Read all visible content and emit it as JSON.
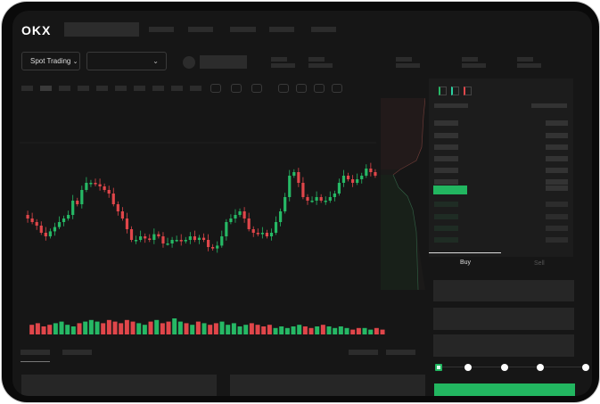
{
  "header": {
    "logo": "OKX",
    "spot_label": "Spot Trading",
    "chevron": "chevron-down-icon"
  },
  "trade": {
    "buy_tab": "Buy",
    "sell_tab": "Sell",
    "leverage_steps": 5,
    "selected_step": 0
  },
  "colors": {
    "up": "#26b865",
    "down": "#e0464a",
    "accent": "#22b660"
  },
  "chart": {
    "closes": [
      95,
      90,
      85,
      80,
      70,
      65,
      72,
      78,
      85,
      90,
      95,
      115,
      110,
      130,
      140,
      140,
      138,
      135,
      130,
      125,
      110,
      100,
      90,
      75,
      60,
      60,
      65,
      62,
      60,
      68,
      65,
      55,
      55,
      60,
      60,
      58,
      60,
      65,
      60,
      63,
      60,
      50,
      48,
      52,
      65,
      85,
      90,
      95,
      100,
      90,
      75,
      70,
      68,
      70,
      65,
      70,
      85,
      100,
      120,
      150,
      155,
      140,
      120,
      115,
      115,
      120,
      115,
      115,
      120,
      125,
      140,
      150,
      145,
      140,
      145,
      150,
      160,
      155,
      150
    ],
    "volumes": [
      6,
      7,
      5,
      6,
      7,
      8,
      6,
      5,
      7,
      8,
      9,
      8,
      7,
      9,
      8,
      7,
      9,
      8,
      7,
      6,
      8,
      9,
      7,
      8,
      10,
      8,
      7,
      6,
      8,
      7,
      6,
      7,
      8,
      6,
      7,
      5,
      6,
      7,
      6,
      5,
      6,
      4,
      5,
      4,
      5,
      6,
      5,
      4,
      5,
      6,
      5,
      4,
      5,
      4,
      3,
      4,
      4,
      3,
      4,
      3
    ]
  }
}
